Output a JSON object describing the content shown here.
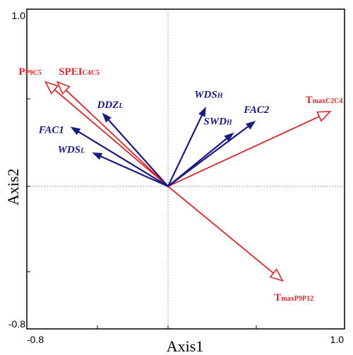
{
  "chart_data": {
    "type": "biplot",
    "xlabel": "Axis1",
    "ylabel": "Axis2",
    "xlim": [
      -0.8,
      1.0
    ],
    "ylim": [
      -0.8,
      1.0
    ],
    "x_ticks": [
      "-0.8",
      "1.0"
    ],
    "y_ticks": [
      "1.0",
      "-0.8"
    ],
    "colors": {
      "predictor": "#d9262b",
      "response": "#1a1a80"
    },
    "vectors": [
      {
        "key": "p9c5",
        "base": "P",
        "sub": "P9C5",
        "group": "predictor",
        "x": -0.62,
        "y": 0.53
      },
      {
        "key": "spei",
        "base": "SPEI",
        "sub": "C4C5",
        "group": "predictor",
        "x": -0.56,
        "y": 0.53
      },
      {
        "key": "tmaxc2c4",
        "base": "T",
        "sub": "maxC2C4",
        "group": "predictor",
        "x": 0.82,
        "y": 0.38
      },
      {
        "key": "tmaxp9p12",
        "base": "T",
        "sub": "maxP9P12",
        "group": "predictor",
        "x": 0.58,
        "y": -0.48
      },
      {
        "key": "ddzl",
        "base": "DDZ",
        "sub": "L",
        "group": "response",
        "x": -0.33,
        "y": 0.37
      },
      {
        "key": "fac1",
        "base": "FAC1",
        "sub": "",
        "group": "response",
        "x": -0.49,
        "y": 0.3
      },
      {
        "key": "wdsl",
        "base": "WDS",
        "sub": "L",
        "group": "response",
        "x": -0.38,
        "y": 0.17
      },
      {
        "key": "wdsh",
        "base": "WDS",
        "sub": "H",
        "group": "response",
        "x": 0.19,
        "y": 0.4
      },
      {
        "key": "swdh",
        "base": "SWD",
        "sub": "H",
        "group": "response",
        "x": 0.33,
        "y": 0.27
      },
      {
        "key": "fac2",
        "base": "FAC2",
        "sub": "",
        "group": "response",
        "x": 0.44,
        "y": 0.33
      }
    ]
  }
}
